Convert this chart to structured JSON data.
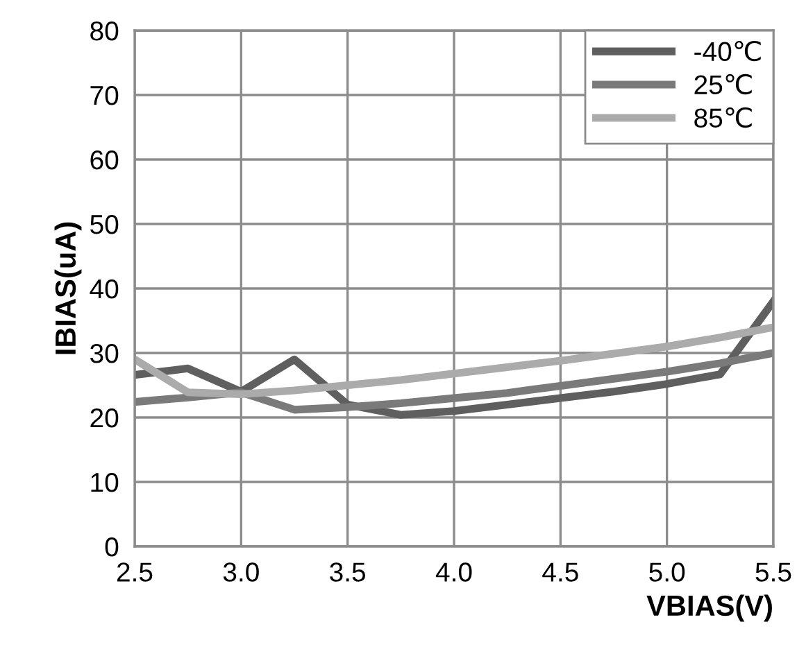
{
  "chart_data": {
    "type": "line",
    "xlabel": "VBIAS(V)",
    "ylabel": "IBIAS(uA)",
    "x": [
      2.5,
      2.75,
      3.0,
      3.25,
      3.5,
      3.75,
      4.0,
      4.25,
      4.5,
      4.75,
      5.0,
      5.25,
      5.5
    ],
    "series": [
      {
        "name": "-40℃",
        "color": "#5f5f5f",
        "values": [
          26.6,
          27.6,
          24,
          29,
          22,
          20.4,
          21,
          22,
          23,
          24,
          25.2,
          26.7,
          38
        ]
      },
      {
        "name": "25℃",
        "color": "#7a7a7a",
        "values": [
          22.4,
          23.1,
          23.9,
          21.2,
          21.6,
          22.2,
          23,
          23.8,
          24.9,
          26,
          27.1,
          28.4,
          30
        ]
      },
      {
        "name": "85℃",
        "color": "#ababab",
        "values": [
          29,
          23.9,
          23.6,
          24.2,
          25,
          25.8,
          26.8,
          27.8,
          28.8,
          29.9,
          31,
          32.4,
          34
        ]
      }
    ],
    "xlim": [
      2.5,
      5.5
    ],
    "xticks": [
      {
        "value": 2.5,
        "label": "2.5"
      },
      {
        "value": 3.0,
        "label": "3.0"
      },
      {
        "value": 3.5,
        "label": "3.5"
      },
      {
        "value": 4.0,
        "label": "4.0"
      },
      {
        "value": 4.5,
        "label": "4.5"
      },
      {
        "value": 5.0,
        "label": "5.0"
      },
      {
        "value": 5.5,
        "label": "5.5"
      }
    ],
    "ylim": [
      0,
      80
    ],
    "yticks": [
      0,
      10,
      20,
      30,
      40,
      50,
      60,
      70,
      80
    ],
    "grid": true,
    "legend": "top right",
    "marker": "none",
    "line_style": "solid"
  }
}
